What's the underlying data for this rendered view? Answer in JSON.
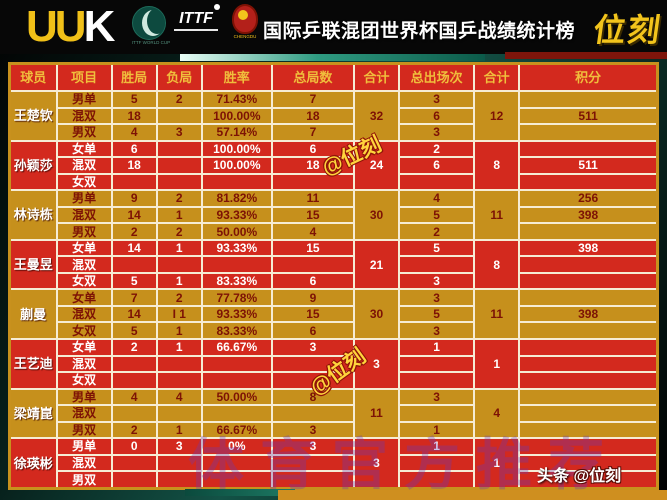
{
  "banner": {
    "brand": "UUK",
    "logos": {
      "world_cup_caption": "ITTF WORLD CUP",
      "ittf_text": "ITTF",
      "chengdu_caption": "CHENGDU"
    },
    "title": "国际乒联混团世界杯国乒战绩统计榜",
    "badge": "位刻"
  },
  "table": {
    "headers": [
      "球员",
      "项目",
      "胜局",
      "负局",
      "胜率",
      "总局数",
      "合计",
      "总出场次",
      "合计",
      "积分"
    ],
    "players": [
      {
        "name": "王楚钦",
        "theme": "gold",
        "sets_total": "32",
        "apps_total": "12",
        "rows": [
          {
            "event": "男单",
            "wins": "5",
            "losses": "2",
            "rate": "71.43%",
            "sets": "7",
            "apps": "3",
            "points": ""
          },
          {
            "event": "混双",
            "wins": "18",
            "losses": "",
            "rate": "100.00%",
            "sets": "18",
            "apps": "6",
            "points": "511"
          },
          {
            "event": "男双",
            "wins": "4",
            "losses": "3",
            "rate": "57.14%",
            "sets": "7",
            "apps": "3",
            "points": ""
          }
        ]
      },
      {
        "name": "孙颖莎",
        "theme": "red",
        "sets_total": "24",
        "apps_total": "8",
        "rows": [
          {
            "event": "女单",
            "wins": "6",
            "losses": "",
            "rate": "100.00%",
            "sets": "6",
            "apps": "2",
            "points": ""
          },
          {
            "event": "混双",
            "wins": "18",
            "losses": "",
            "rate": "100.00%",
            "sets": "18",
            "apps": "6",
            "points": "511"
          },
          {
            "event": "女双",
            "wins": "",
            "losses": "",
            "rate": "",
            "sets": "",
            "apps": "",
            "points": ""
          }
        ]
      },
      {
        "name": "林诗栋",
        "theme": "gold",
        "sets_total": "30",
        "apps_total": "11",
        "rows": [
          {
            "event": "男单",
            "wins": "9",
            "losses": "2",
            "rate": "81.82%",
            "sets": "11",
            "apps": "4",
            "points": "256"
          },
          {
            "event": "混双",
            "wins": "14",
            "losses": "1",
            "rate": "93.33%",
            "sets": "15",
            "apps": "5",
            "points": "398"
          },
          {
            "event": "男双",
            "wins": "2",
            "losses": "2",
            "rate": "50.00%",
            "sets": "4",
            "apps": "2",
            "points": ""
          }
        ]
      },
      {
        "name": "王曼昱",
        "theme": "red",
        "sets_total": "21",
        "apps_total": "8",
        "rows": [
          {
            "event": "女单",
            "wins": "14",
            "losses": "1",
            "rate": "93.33%",
            "sets": "15",
            "apps": "5",
            "points": "398"
          },
          {
            "event": "混双",
            "wins": "",
            "losses": "",
            "rate": "",
            "sets": "",
            "apps": "",
            "points": ""
          },
          {
            "event": "女双",
            "wins": "5",
            "losses": "1",
            "rate": "83.33%",
            "sets": "6",
            "apps": "3",
            "points": ""
          }
        ]
      },
      {
        "name": "蒯曼",
        "theme": "gold",
        "sets_total": "30",
        "apps_total": "11",
        "rows": [
          {
            "event": "女单",
            "wins": "7",
            "losses": "2",
            "rate": "77.78%",
            "sets": "9",
            "apps": "3",
            "points": ""
          },
          {
            "event": "混双",
            "wins": "14",
            "losses": "I 1",
            "rate": "93.33%",
            "sets": "15",
            "apps": "5",
            "points": "398"
          },
          {
            "event": "女双",
            "wins": "5",
            "losses": "1",
            "rate": "83.33%",
            "sets": "6",
            "apps": "3",
            "points": ""
          }
        ]
      },
      {
        "name": "王艺迪",
        "theme": "red",
        "sets_total": "3",
        "apps_total": "1",
        "rows": [
          {
            "event": "女单",
            "wins": "2",
            "losses": "1",
            "rate": "66.67%",
            "sets": "3",
            "apps": "1",
            "points": ""
          },
          {
            "event": "混双",
            "wins": "",
            "losses": "",
            "rate": "",
            "sets": "",
            "apps": "",
            "points": ""
          },
          {
            "event": "女双",
            "wins": "",
            "losses": "",
            "rate": "",
            "sets": "",
            "apps": "",
            "points": ""
          }
        ]
      },
      {
        "name": "梁靖崑",
        "theme": "gold",
        "sets_total": "11",
        "apps_total": "4",
        "rows": [
          {
            "event": "男单",
            "wins": "4",
            "losses": "4",
            "rate": "50.00%",
            "sets": "8",
            "apps": "3",
            "points": ""
          },
          {
            "event": "混双",
            "wins": "",
            "losses": "",
            "rate": "",
            "sets": "",
            "apps": "",
            "points": ""
          },
          {
            "event": "男双",
            "wins": "2",
            "losses": "1",
            "rate": "66.67%",
            "sets": "3",
            "apps": "1",
            "points": ""
          }
        ]
      },
      {
        "name": "徐瑛彬",
        "theme": "red",
        "sets_total": "3",
        "apps_total": "1",
        "rows": [
          {
            "event": "男单",
            "wins": "0",
            "losses": "3",
            "rate": "0%",
            "sets": "3",
            "apps": "1",
            "points": ""
          },
          {
            "event": "混双",
            "wins": "",
            "losses": "",
            "rate": "",
            "sets": "",
            "apps": "",
            "points": ""
          },
          {
            "event": "男双",
            "wins": "",
            "losses": "",
            "rate": "",
            "sets": "",
            "apps": "",
            "points": ""
          }
        ]
      }
    ]
  },
  "watermarks": {
    "stamp": "@位刻",
    "big": "体育官方推荐"
  },
  "footer": {
    "source_label": "头条",
    "source_handle": "@位刻"
  },
  "colors": {
    "row_red": "#d3291e",
    "row_gold": "#c6901c",
    "header_text": "#f0be3c",
    "badge_yellow": "#f2c41c",
    "grid_line": "#f6ecd4"
  }
}
